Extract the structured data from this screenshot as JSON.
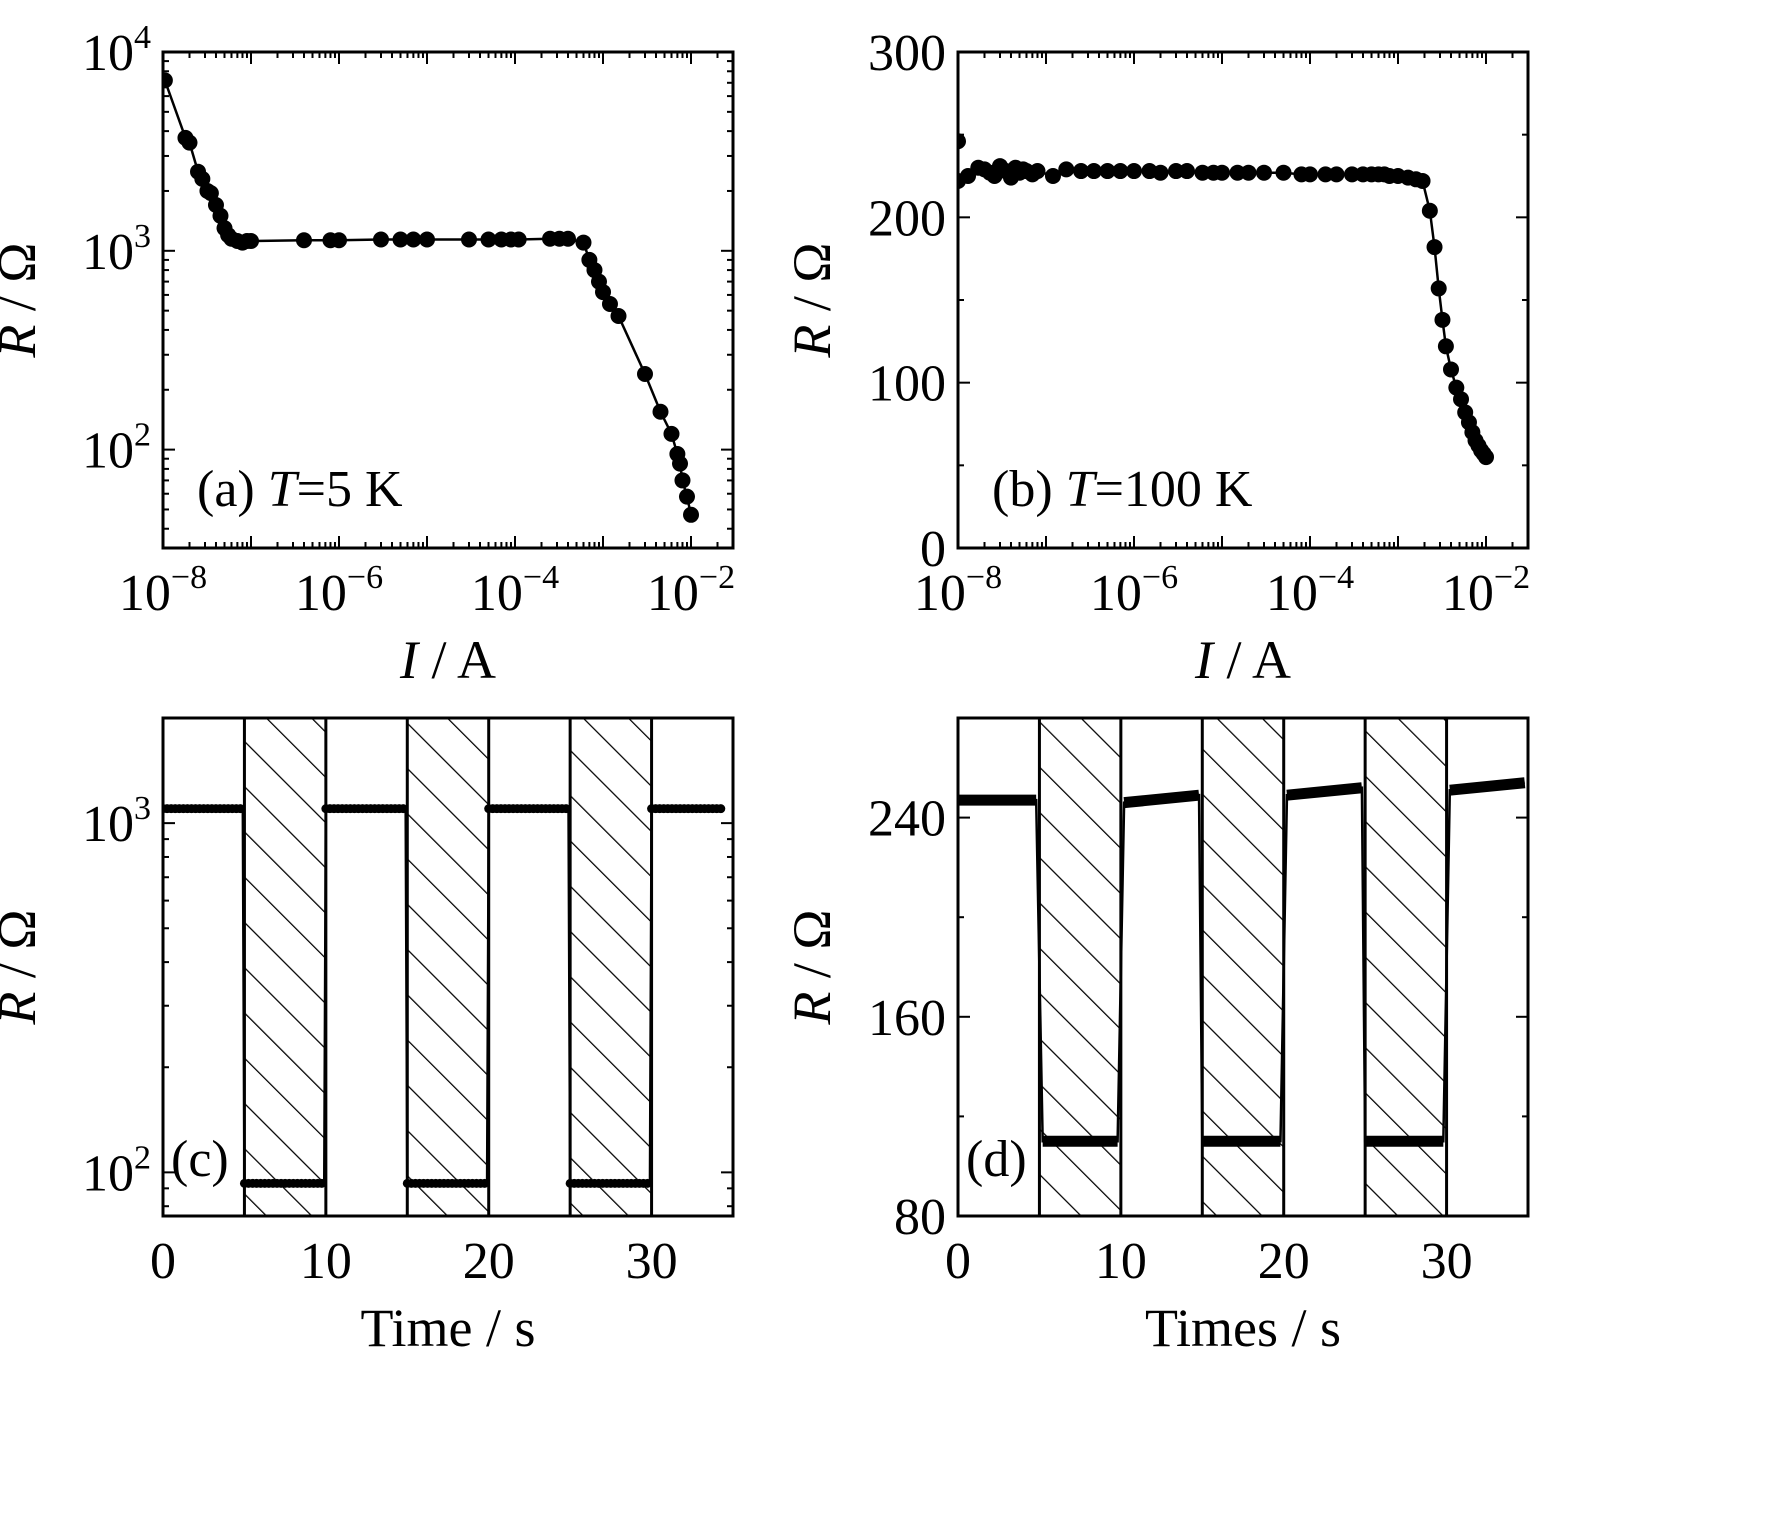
{
  "chart_data": [
    {
      "id": "a",
      "type": "scatter",
      "panel_label": "(a) ",
      "panel_T_symbol": "T",
      "panel_T_value": "=5 K",
      "xlabel_symbol": "I",
      "xlabel_unit": " / A",
      "ylabel_symbol": "R",
      "ylabel_unit": " / Ω",
      "x_scale": "log",
      "y_scale": "log",
      "xlim": [
        1e-08,
        0.03
      ],
      "ylim": [
        32,
        10000
      ],
      "x_ticks": [
        {
          "value": 1e-08,
          "base": "10",
          "exp": "−8"
        },
        {
          "value": 1e-06,
          "base": "10",
          "exp": "−6"
        },
        {
          "value": 0.0001,
          "base": "10",
          "exp": "−4"
        },
        {
          "value": 0.01,
          "base": "10",
          "exp": "−2"
        }
      ],
      "y_ticks": [
        {
          "value": 100,
          "base": "10",
          "exp": "2"
        },
        {
          "value": 1000,
          "base": "10",
          "exp": "3"
        },
        {
          "value": 10000,
          "base": "10",
          "exp": "4"
        }
      ],
      "series": [
        {
          "x": [
            1.05e-08,
            1.8e-08,
            2e-08,
            2.5e-08,
            2.8e-08,
            3.2e-08,
            3.5e-08,
            4e-08,
            4.5e-08,
            5e-08,
            5.5e-08,
            6e-08,
            7e-08,
            8e-08,
            9e-08,
            1e-07,
            4e-07,
            8e-07,
            1e-06,
            3e-06,
            5e-06,
            7e-06,
            1e-05,
            3e-05,
            5e-05,
            7e-05,
            9e-05,
            0.00011,
            0.00025,
            0.00032,
            0.0004,
            0.0006,
            0.0007,
            0.0008,
            0.0009,
            0.001,
            0.0012,
            0.0015,
            0.003,
            0.0045,
            0.006,
            0.007,
            0.0075,
            0.008,
            0.009,
            0.01
          ],
          "y": [
            7200,
            3700,
            3500,
            2500,
            2300,
            2000,
            1950,
            1700,
            1500,
            1300,
            1200,
            1150,
            1120,
            1100,
            1120,
            1120,
            1130,
            1130,
            1130,
            1140,
            1140,
            1140,
            1140,
            1140,
            1140,
            1140,
            1140,
            1140,
            1150,
            1150,
            1150,
            1100,
            900,
            800,
            700,
            620,
            540,
            470,
            240,
            155,
            120,
            95,
            85,
            70,
            58,
            47
          ]
        }
      ]
    },
    {
      "id": "b",
      "type": "scatter",
      "panel_label": "(b) ",
      "panel_T_symbol": "T",
      "panel_T_value": "=100 K",
      "xlabel_symbol": "I",
      "xlabel_unit": " / A",
      "ylabel_symbol": "R",
      "ylabel_unit": " / Ω",
      "x_scale": "log",
      "y_scale": "linear",
      "xlim": [
        1e-08,
        0.03
      ],
      "ylim": [
        0,
        300
      ],
      "x_ticks": [
        {
          "value": 1e-08,
          "base": "10",
          "exp": "−8"
        },
        {
          "value": 1e-06,
          "base": "10",
          "exp": "−6"
        },
        {
          "value": 0.0001,
          "base": "10",
          "exp": "−4"
        },
        {
          "value": 0.01,
          "base": "10",
          "exp": "−2"
        }
      ],
      "y_ticks": [
        {
          "value": 0,
          "label": "0"
        },
        {
          "value": 100,
          "label": "100"
        },
        {
          "value": 200,
          "label": "200"
        },
        {
          "value": 300,
          "label": "300"
        }
      ],
      "series": [
        {
          "x": [
            1e-08,
            1e-08,
            1.3e-08,
            1.7e-08,
            2e-08,
            2.3e-08,
            2.6e-08,
            3e-08,
            3.5e-08,
            4e-08,
            4.5e-08,
            5e-08,
            5.5e-08,
            6e-08,
            7e-08,
            8e-08,
            1.2e-07,
            1.7e-07,
            2.5e-07,
            3.5e-07,
            5e-07,
            7e-07,
            1e-06,
            1.5e-06,
            2e-06,
            3e-06,
            4e-06,
            6e-06,
            8e-06,
            1e-05,
            1.5e-05,
            2e-05,
            3e-05,
            5e-05,
            8e-05,
            0.0001,
            0.00015,
            0.0002,
            0.0003,
            0.0004,
            0.0005,
            0.0006,
            0.0007,
            0.0008,
            0.001,
            0.0013,
            0.0016,
            0.0019,
            0.0023,
            0.0026,
            0.0029,
            0.0032,
            0.0035,
            0.004,
            0.0046,
            0.0052,
            0.0058,
            0.0064,
            0.007,
            0.0076,
            0.0082,
            0.0088,
            0.0094,
            0.01
          ],
          "y": [
            246,
            222,
            225,
            230,
            229,
            227,
            225,
            231,
            228,
            224,
            230,
            227,
            229,
            228,
            226,
            228,
            225,
            229,
            228,
            228,
            228,
            228,
            228,
            228,
            227,
            228,
            228,
            227,
            227,
            227,
            227,
            227,
            227,
            227,
            226,
            226,
            226,
            226,
            226,
            226,
            226,
            226,
            226,
            225,
            225,
            224,
            223,
            222,
            204,
            182,
            157,
            138,
            122,
            108,
            97,
            90,
            82,
            76,
            70,
            65,
            62,
            59,
            57,
            55
          ]
        }
      ]
    },
    {
      "id": "c",
      "type": "line",
      "panel_label": "(c)",
      "xlabel": "Time / s",
      "ylabel_symbol": "R",
      "ylabel_unit": " / Ω",
      "x_scale": "linear",
      "y_scale": "log",
      "xlim": [
        0,
        35
      ],
      "ylim": [
        75,
        2000
      ],
      "x_ticks": [
        {
          "value": 0,
          "label": "0"
        },
        {
          "value": 10,
          "label": "10"
        },
        {
          "value": 20,
          "label": "20"
        },
        {
          "value": 30,
          "label": "30"
        }
      ],
      "y_ticks": [
        {
          "value": 100,
          "base": "10",
          "exp": "2"
        },
        {
          "value": 1000,
          "base": "10",
          "exp": "3"
        }
      ],
      "hatched_intervals": [
        [
          5,
          10
        ],
        [
          15,
          20
        ],
        [
          25,
          30
        ]
      ],
      "high_value": 1100,
      "low_value": 93,
      "series": [
        {
          "segments": [
            {
              "x_start": 0,
              "x_end": 4.9,
              "y": 1100
            },
            {
              "x_start": 5.0,
              "x_end": 9.9,
              "y": 93
            },
            {
              "x_start": 10.0,
              "x_end": 14.9,
              "y": 1100
            },
            {
              "x_start": 15.0,
              "x_end": 19.9,
              "y": 93
            },
            {
              "x_start": 20.0,
              "x_end": 24.9,
              "y": 1100
            },
            {
              "x_start": 25.0,
              "x_end": 29.9,
              "y": 93
            },
            {
              "x_start": 30.0,
              "x_end": 34.3,
              "y": 1100
            }
          ]
        }
      ]
    },
    {
      "id": "d",
      "type": "line",
      "panel_label": "(d)",
      "xlabel": "Times / s",
      "ylabel_symbol": "R",
      "ylabel_unit": " / Ω",
      "x_scale": "linear",
      "y_scale": "linear",
      "xlim": [
        0,
        35
      ],
      "ylim": [
        80,
        280
      ],
      "x_ticks": [
        {
          "value": 0,
          "label": "0"
        },
        {
          "value": 10,
          "label": "10"
        },
        {
          "value": 20,
          "label": "20"
        },
        {
          "value": 30,
          "label": "30"
        }
      ],
      "y_ticks": [
        {
          "value": 80,
          "label": "80"
        },
        {
          "value": 160,
          "label": "160"
        },
        {
          "value": 240,
          "label": "240"
        }
      ],
      "hatched_intervals": [
        [
          5,
          10
        ],
        [
          15,
          20
        ],
        [
          25,
          30
        ]
      ],
      "series": [
        {
          "segments": [
            {
              "x_start": 0,
              "x_end": 4.8,
              "y_start": 247,
              "y_end": 247
            },
            {
              "x_start": 5.2,
              "x_end": 9.8,
              "y_start": 110,
              "y_end": 110
            },
            {
              "x_start": 10.2,
              "x_end": 14.8,
              "y_start": 246,
              "y_end": 249
            },
            {
              "x_start": 15.0,
              "x_end": 19.8,
              "y_start": 110,
              "y_end": 110
            },
            {
              "x_start": 20.2,
              "x_end": 24.8,
              "y_start": 249,
              "y_end": 252
            },
            {
              "x_start": 25.0,
              "x_end": 29.8,
              "y_start": 110,
              "y_end": 110
            },
            {
              "x_start": 30.2,
              "x_end": 34.8,
              "y_start": 251,
              "y_end": 254
            }
          ]
        }
      ]
    }
  ]
}
